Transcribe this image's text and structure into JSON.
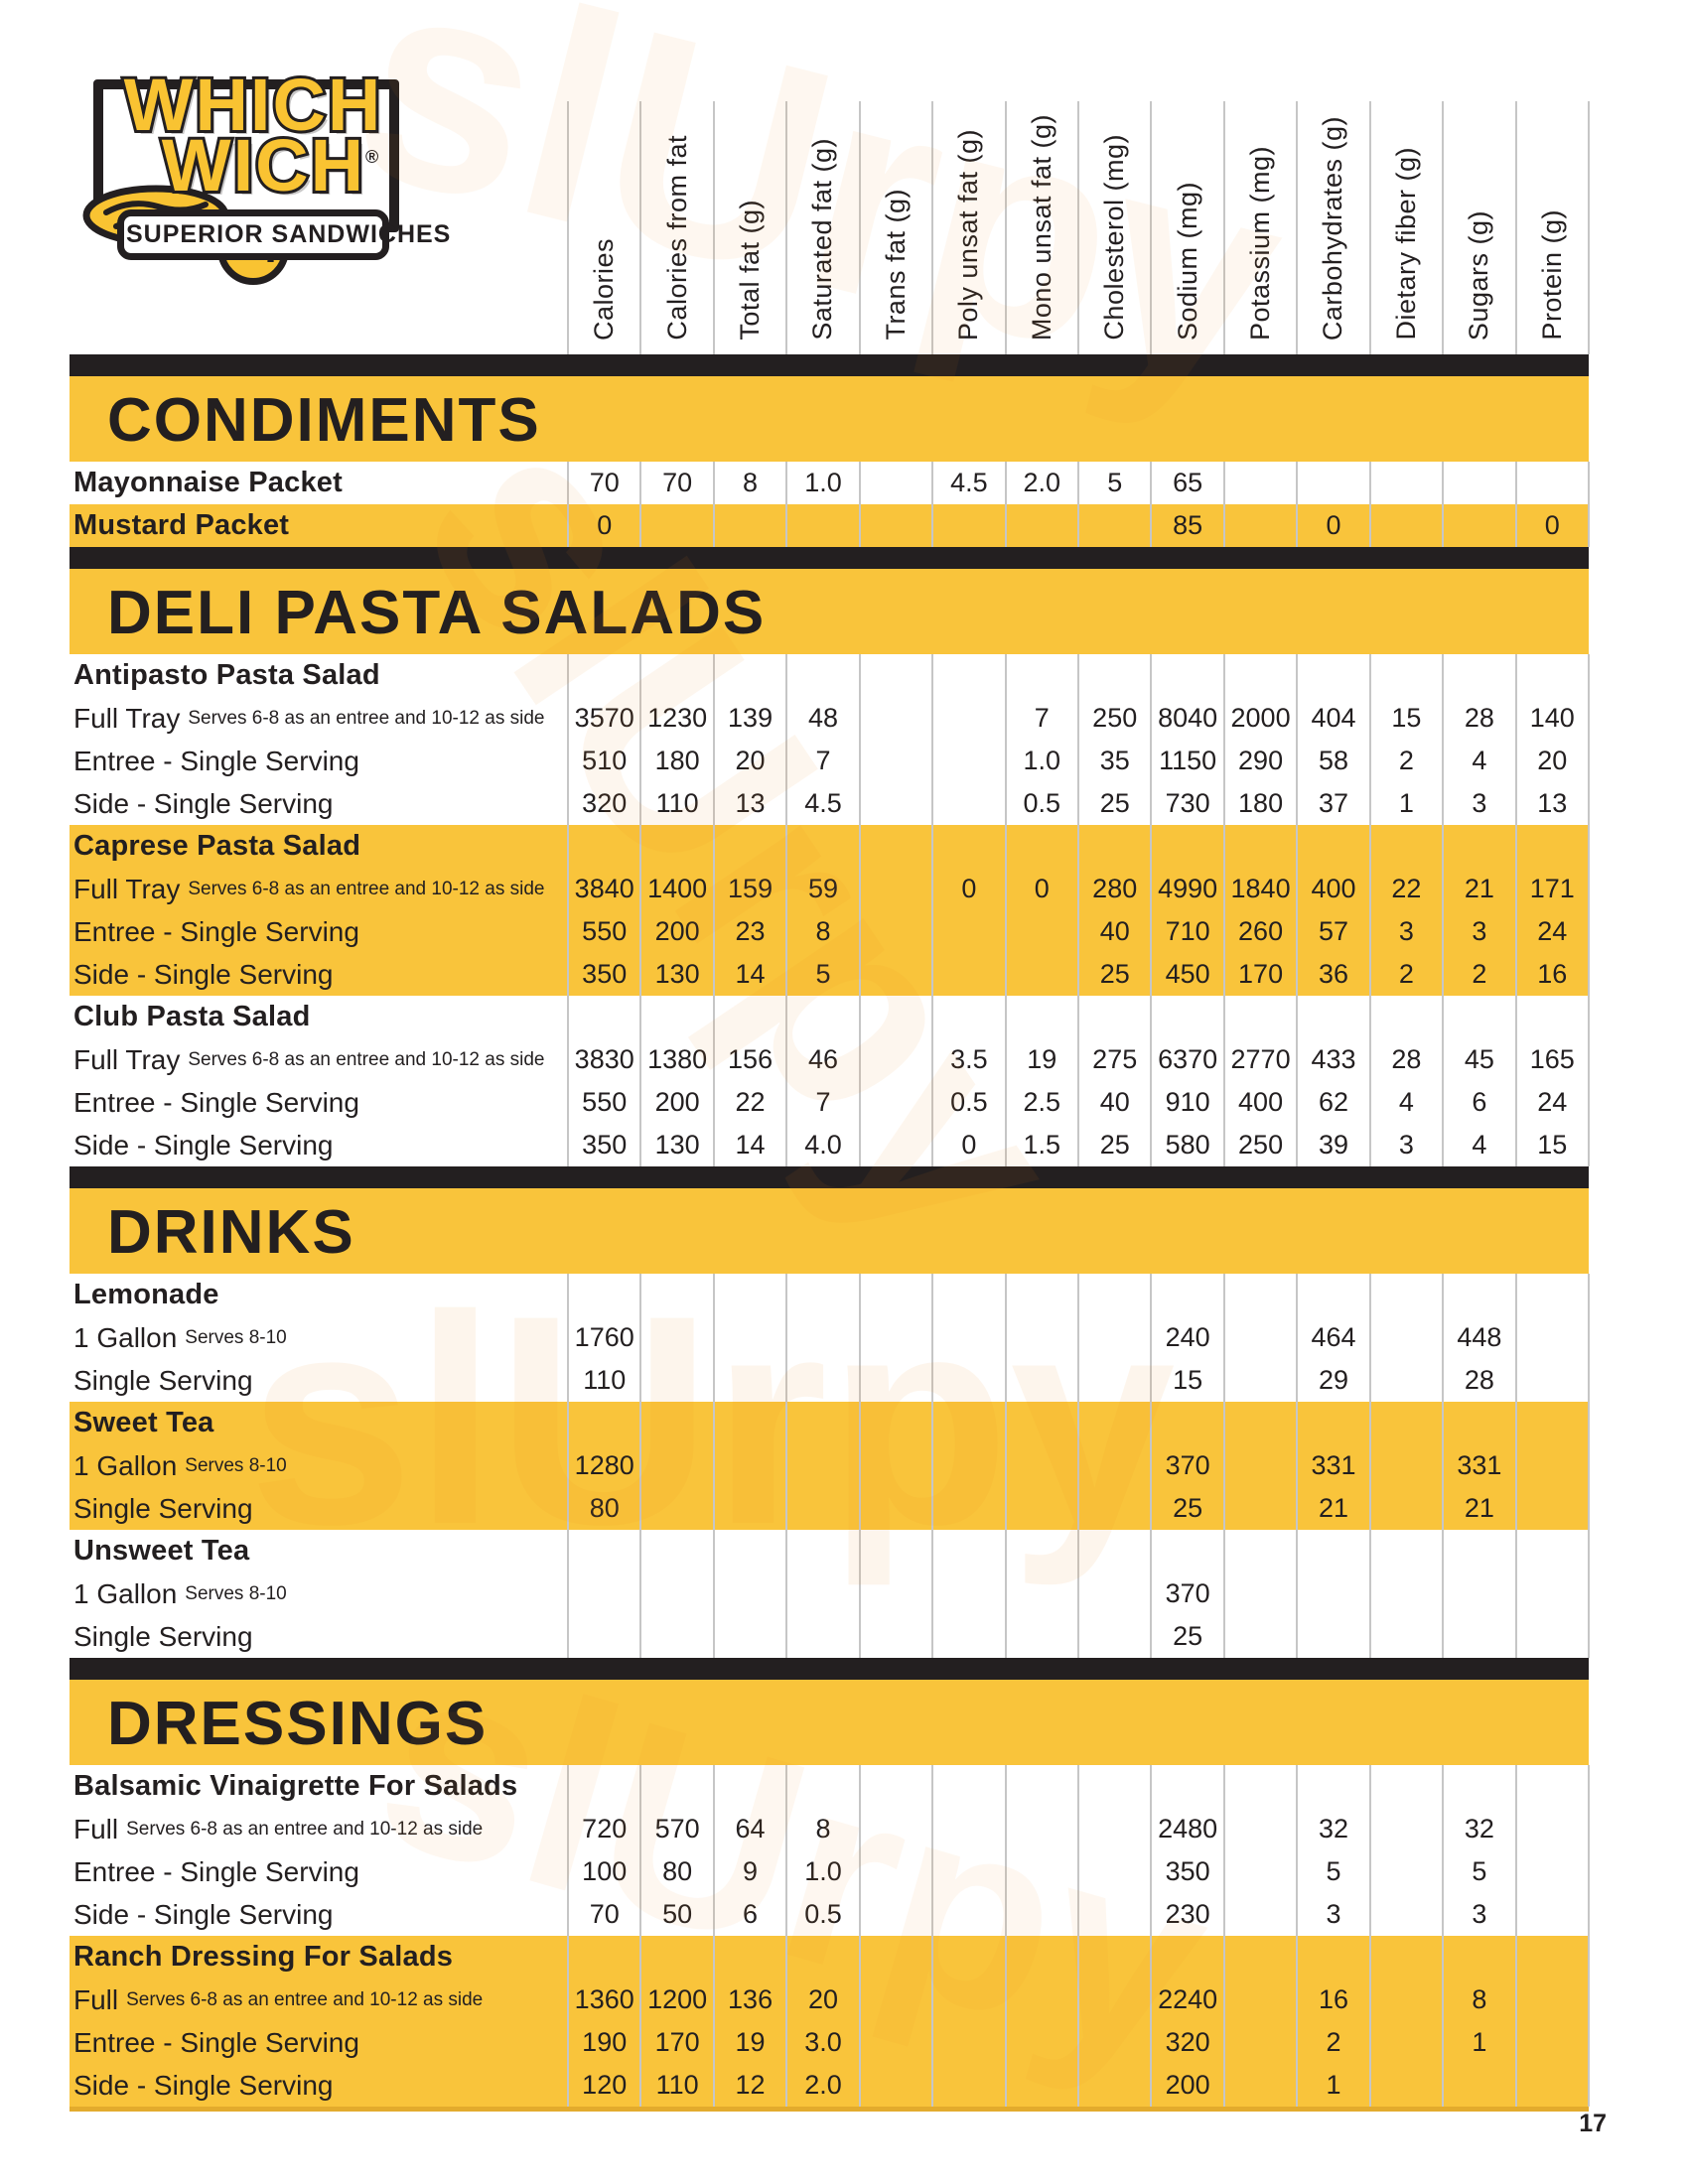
{
  "brand": {
    "line1": "WHICH",
    "line2": "WICH",
    "registered": "®",
    "question": "?",
    "tagline": "SUPERIOR SANDWICHES"
  },
  "columns": [
    "Calories",
    "Calories from fat",
    "Total fat (g)",
    "Saturated fat (g)",
    "Trans fat (g)",
    "Poly unsat fat (g)",
    "Mono unsat fat (g)",
    "Cholesterol (mg)",
    "Sodium (mg)",
    "Potassium (mg)",
    "Carbohydrates (g)",
    "Dietary fiber (g)",
    "Sugars (g)",
    "Protein (g)"
  ],
  "watermark": "slUrpy",
  "page_number": "17",
  "colors": {
    "yellow": "#f9c43b",
    "black": "#231f20",
    "gridline": "#c6c6c6"
  },
  "sections": [
    {
      "title": "CONDIMENTS",
      "groups": [
        {
          "name": null,
          "shaded": false,
          "rows": [
            {
              "label": "Mayonnaise Packet",
              "sub": "",
              "strong": true,
              "shaded": false,
              "values": [
                "70",
                "70",
                "8",
                "1.0",
                "",
                "4.5",
                "2.0",
                "5",
                "65",
                "",
                "",
                "",
                "",
                ""
              ]
            },
            {
              "label": "Mustard Packet",
              "sub": "",
              "strong": true,
              "shaded": true,
              "values": [
                "0",
                "",
                "",
                "",
                "",
                "",
                "",
                "",
                "85",
                "",
                "0",
                "",
                "",
                "0"
              ]
            }
          ]
        }
      ]
    },
    {
      "title": "DELI PASTA SALADS",
      "groups": [
        {
          "name": "Antipasto Pasta Salad",
          "shaded": false,
          "rows": [
            {
              "label": "Full Tray",
              "sub": "Serves 6-8 as an entree  and 10-12 as side",
              "strong": false,
              "shaded": false,
              "values": [
                "3570",
                "1230",
                "139",
                "48",
                "",
                "",
                "7",
                "250",
                "8040",
                "2000",
                "404",
                "15",
                "28",
                "140"
              ]
            },
            {
              "label": "Entree - Single Serving",
              "sub": "",
              "strong": false,
              "shaded": false,
              "values": [
                "510",
                "180",
                "20",
                "7",
                "",
                "",
                "1.0",
                "35",
                "1150",
                "290",
                "58",
                "2",
                "4",
                "20"
              ]
            },
            {
              "label": "Side - Single Serving",
              "sub": "",
              "strong": false,
              "shaded": false,
              "values": [
                "320",
                "110",
                "13",
                "4.5",
                "",
                "",
                "0.5",
                "25",
                "730",
                "180",
                "37",
                "1",
                "3",
                "13"
              ]
            }
          ]
        },
        {
          "name": "Caprese Pasta Salad",
          "shaded": true,
          "rows": [
            {
              "label": "Full Tray",
              "sub": "Serves 6-8 as an entree  and 10-12 as side",
              "strong": false,
              "shaded": true,
              "values": [
                "3840",
                "1400",
                "159",
                "59",
                "",
                "0",
                "0",
                "280",
                "4990",
                "1840",
                "400",
                "22",
                "21",
                "171"
              ]
            },
            {
              "label": "Entree - Single Serving",
              "sub": "",
              "strong": false,
              "shaded": true,
              "values": [
                "550",
                "200",
                "23",
                "8",
                "",
                "",
                "",
                "40",
                "710",
                "260",
                "57",
                "3",
                "3",
                "24"
              ]
            },
            {
              "label": "Side - Single Serving",
              "sub": "",
              "strong": false,
              "shaded": true,
              "values": [
                "350",
                "130",
                "14",
                "5",
                "",
                "",
                "",
                "25",
                "450",
                "170",
                "36",
                "2",
                "2",
                "16"
              ]
            }
          ]
        },
        {
          "name": "Club Pasta Salad",
          "shaded": false,
          "rows": [
            {
              "label": "Full Tray",
              "sub": "Serves 6-8 as an entree  and 10-12 as side",
              "strong": false,
              "shaded": false,
              "values": [
                "3830",
                "1380",
                "156",
                "46",
                "",
                "3.5",
                "19",
                "275",
                "6370",
                "2770",
                "433",
                "28",
                "45",
                "165"
              ]
            },
            {
              "label": "Entree - Single Serving",
              "sub": "",
              "strong": false,
              "shaded": false,
              "values": [
                "550",
                "200",
                "22",
                "7",
                "",
                "0.5",
                "2.5",
                "40",
                "910",
                "400",
                "62",
                "4",
                "6",
                "24"
              ]
            },
            {
              "label": "Side - Single Serving",
              "sub": "",
              "strong": false,
              "shaded": false,
              "values": [
                "350",
                "130",
                "14",
                "4.0",
                "",
                "0",
                "1.5",
                "25",
                "580",
                "250",
                "39",
                "3",
                "4",
                "15"
              ]
            }
          ]
        }
      ]
    },
    {
      "title": "DRINKS",
      "groups": [
        {
          "name": "Lemonade",
          "shaded": false,
          "rows": [
            {
              "label": "1 Gallon",
              "sub": "Serves 8-10",
              "strong": false,
              "shaded": false,
              "values": [
                "1760",
                "",
                "",
                "",
                "",
                "",
                "",
                "",
                "240",
                "",
                "464",
                "",
                "448",
                ""
              ]
            },
            {
              "label": "Single Serving",
              "sub": "",
              "strong": false,
              "shaded": false,
              "values": [
                "110",
                "",
                "",
                "",
                "",
                "",
                "",
                "",
                "15",
                "",
                "29",
                "",
                "28",
                ""
              ]
            }
          ]
        },
        {
          "name": "Sweet Tea",
          "shaded": true,
          "rows": [
            {
              "label": "1 Gallon",
              "sub": "Serves 8-10",
              "strong": false,
              "shaded": true,
              "values": [
                "1280",
                "",
                "",
                "",
                "",
                "",
                "",
                "",
                "370",
                "",
                "331",
                "",
                "331",
                ""
              ]
            },
            {
              "label": "Single Serving",
              "sub": "",
              "strong": false,
              "shaded": true,
              "values": [
                "80",
                "",
                "",
                "",
                "",
                "",
                "",
                "",
                "25",
                "",
                "21",
                "",
                "21",
                ""
              ]
            }
          ]
        },
        {
          "name": "Unsweet Tea",
          "shaded": false,
          "rows": [
            {
              "label": "1 Gallon",
              "sub": "Serves 8-10",
              "strong": false,
              "shaded": false,
              "values": [
                "",
                "",
                "",
                "",
                "",
                "",
                "",
                "",
                "370",
                "",
                "",
                "",
                "",
                ""
              ]
            },
            {
              "label": "Single Serving",
              "sub": "",
              "strong": false,
              "shaded": false,
              "values": [
                "",
                "",
                "",
                "",
                "",
                "",
                "",
                "",
                "25",
                "",
                "",
                "",
                "",
                ""
              ]
            }
          ]
        }
      ]
    },
    {
      "title": "DRESSINGS",
      "groups": [
        {
          "name": "Balsamic Vinaigrette For Salads",
          "shaded": false,
          "rows": [
            {
              "label": "Full",
              "sub": "Serves 6-8 as an entree  and 10-12 as side",
              "strong": false,
              "shaded": false,
              "values": [
                "720",
                "570",
                "64",
                "8",
                "",
                "",
                "",
                "",
                "2480",
                "",
                "32",
                "",
                "32",
                ""
              ]
            },
            {
              "label": "Entree - Single Serving",
              "sub": "",
              "strong": false,
              "shaded": false,
              "values": [
                "100",
                "80",
                "9",
                "1.0",
                "",
                "",
                "",
                "",
                "350",
                "",
                "5",
                "",
                "5",
                ""
              ]
            },
            {
              "label": "Side - Single Serving",
              "sub": "",
              "strong": false,
              "shaded": false,
              "values": [
                "70",
                "50",
                "6",
                "0.5",
                "",
                "",
                "",
                "",
                "230",
                "",
                "3",
                "",
                "3",
                ""
              ]
            }
          ]
        },
        {
          "name": "Ranch Dressing For Salads",
          "shaded": true,
          "rows": [
            {
              "label": "Full",
              "sub": "Serves 6-8 as an entree  and 10-12 as side",
              "strong": false,
              "shaded": true,
              "values": [
                "1360",
                "1200",
                "136",
                "20",
                "",
                "",
                "",
                "",
                "2240",
                "",
                "16",
                "",
                "8",
                ""
              ]
            },
            {
              "label": "Entree - Single Serving",
              "sub": "",
              "strong": false,
              "shaded": true,
              "values": [
                "190",
                "170",
                "19",
                "3.0",
                "",
                "",
                "",
                "",
                "320",
                "",
                "2",
                "",
                "1",
                ""
              ]
            },
            {
              "label": "Side - Single Serving",
              "sub": "",
              "strong": false,
              "shaded": true,
              "values": [
                "120",
                "110",
                "12",
                "2.0",
                "",
                "",
                "",
                "",
                "200",
                "",
                "1",
                "",
                "",
                ""
              ]
            }
          ]
        }
      ]
    }
  ]
}
